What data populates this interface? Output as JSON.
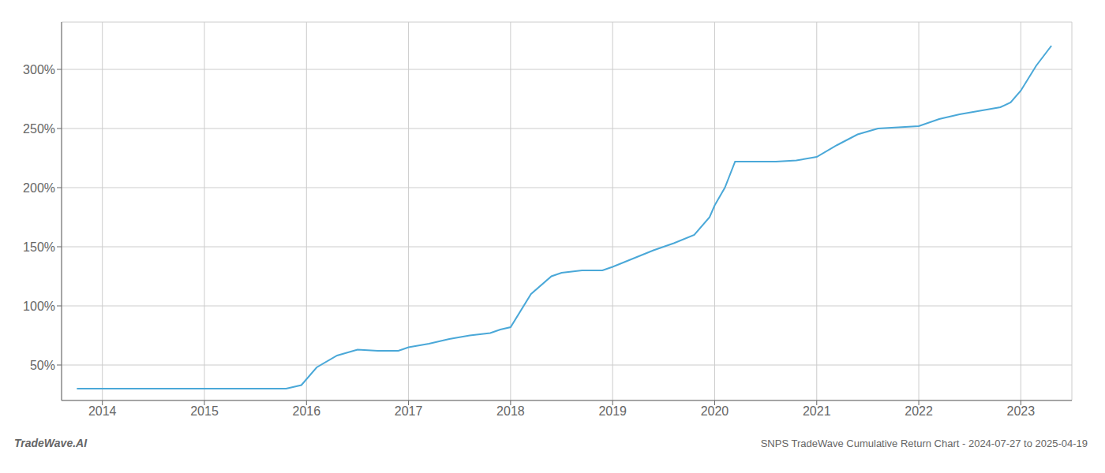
{
  "chart_data": {
    "type": "line",
    "title": "SNPS TradeWave Cumulative Return Chart - 2024-07-27 to 2025-04-19",
    "annotations": [
      "TradeWave.AI"
    ],
    "color": "#4aa8d8",
    "grid": true,
    "x": [
      2013.75,
      2014.0,
      2014.2,
      2014.4,
      2014.6,
      2014.8,
      2015.0,
      2015.2,
      2015.4,
      2015.6,
      2015.8,
      2015.95,
      2016.1,
      2016.3,
      2016.5,
      2016.7,
      2016.9,
      2017.0,
      2017.2,
      2017.4,
      2017.6,
      2017.8,
      2017.9,
      2018.0,
      2018.2,
      2018.4,
      2018.5,
      2018.7,
      2018.9,
      2019.0,
      2019.2,
      2019.4,
      2019.5,
      2019.6,
      2019.8,
      2019.95,
      2020.0,
      2020.1,
      2020.2,
      2020.4,
      2020.6,
      2020.8,
      2021.0,
      2021.2,
      2021.4,
      2021.6,
      2021.8,
      2022.0,
      2022.2,
      2022.4,
      2022.6,
      2022.8,
      2022.9,
      2023.0,
      2023.15,
      2023.3
    ],
    "values": [
      30,
      30,
      30,
      30,
      30,
      30,
      30,
      30,
      30,
      30,
      30,
      33,
      48,
      58,
      63,
      62,
      62,
      65,
      68,
      72,
      75,
      77,
      80,
      82,
      110,
      125,
      128,
      130,
      130,
      133,
      140,
      147,
      150,
      153,
      160,
      175,
      185,
      200,
      222,
      222,
      222,
      223,
      226,
      236,
      245,
      250,
      251,
      252,
      258,
      262,
      265,
      268,
      272,
      282,
      303,
      320
    ],
    "xlim": [
      2013.6,
      2023.5
    ],
    "xticks": [
      2014,
      2015,
      2016,
      2017,
      2018,
      2019,
      2020,
      2021,
      2022,
      2023
    ],
    "ylim": [
      20,
      340
    ],
    "yticks": [
      {
        "value": 50,
        "label": "50%"
      },
      {
        "value": 100,
        "label": "100%"
      },
      {
        "value": 150,
        "label": "150%"
      },
      {
        "value": 200,
        "label": "200%"
      },
      {
        "value": 250,
        "label": "250%"
      },
      {
        "value": 300,
        "label": "300%"
      }
    ]
  }
}
